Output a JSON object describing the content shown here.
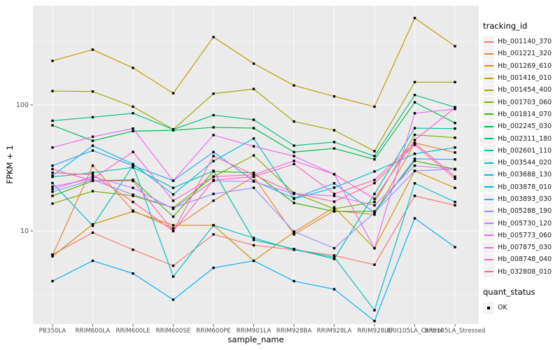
{
  "figure": {
    "background": "#FFFFFF",
    "panel_background": "#EBEBEB",
    "gridline_color": "#FFFFFF",
    "tick_label_color": "#4D4D4D",
    "tick_mark_color": "#333333",
    "point_color": "#000000"
  },
  "legend": {
    "tracking_title": "tracking_id",
    "quant_title": "quant_status",
    "quant_items": [
      {
        "label": "OK"
      }
    ],
    "key_background": "#F2F2F2"
  },
  "chart_data": {
    "type": "line",
    "title": "",
    "xlabel": "sample_name",
    "ylabel": "FPKM + 1",
    "y_scale": "log10",
    "y_major_ticks": [
      10,
      100
    ],
    "y_minor_ticks": [
      3.162,
      31.62,
      316.2
    ],
    "ylim": [
      1.85,
      620
    ],
    "grid": true,
    "legend_position": "right",
    "point_shape": "square",
    "categories": [
      "PB350LA",
      "RRIM600LA",
      "RRIM600LE",
      "RRIM600SE",
      "RRIM600PE",
      "RRIM901LA",
      "RRIM928BA",
      "RRIM928LA",
      "RRIM928LE",
      "RRII105LA_Control",
      "RRII105LA_Stressed"
    ],
    "series": [
      {
        "name": "Hb_001140_370",
        "color": "#F8766D",
        "values": [
          6.5,
          9.7,
          7.1,
          5.3,
          9.4,
          7.7,
          7.1,
          6.4,
          5.4,
          19,
          16
        ]
      },
      {
        "name": "Hb_001221_320",
        "color": "#EA8331",
        "values": [
          6.4,
          33,
          14.5,
          10.5,
          17.4,
          27,
          9.4,
          14.5,
          13.5,
          50,
          42
        ]
      },
      {
        "name": "Hb_001269_610",
        "color": "#D89000",
        "values": [
          6.3,
          11.3,
          14.3,
          11.1,
          11.1,
          5.8,
          9.8,
          15.4,
          7.3,
          30,
          22
        ]
      },
      {
        "name": "Hb_001416_010",
        "color": "#C09B00",
        "values": [
          224,
          275,
          197,
          124,
          346,
          213,
          143,
          117,
          97,
          490,
          293
        ]
      },
      {
        "name": "Hb_001454_400",
        "color": "#A3A500",
        "values": [
          129,
          128,
          97,
          64,
          123,
          134,
          74,
          63,
          43,
          152,
          152
        ]
      },
      {
        "name": "Hb_001703_060",
        "color": "#7CAE00",
        "values": [
          16.5,
          20.7,
          19,
          15.3,
          27,
          39.8,
          20,
          15,
          17,
          58,
          55
        ]
      },
      {
        "name": "Hb_001814_070",
        "color": "#39B600",
        "values": [
          19,
          25,
          25.5,
          13,
          29.7,
          29,
          16.7,
          14.3,
          14.3,
          36,
          31
        ]
      },
      {
        "name": "Hb_002245_030",
        "color": "#00BB4E",
        "values": [
          69,
          52,
          62,
          63,
          66.5,
          65.5,
          42.3,
          45.2,
          37,
          105,
          72
        ]
      },
      {
        "name": "Hb_002311_180",
        "color": "#00BF7D",
        "values": [
          75,
          80,
          86,
          64,
          83,
          76.4,
          47.6,
          50.8,
          39.3,
          120,
          96
        ]
      },
      {
        "name": "Hb_002601_110",
        "color": "#00C1A3",
        "values": [
          26.9,
          29,
          32,
          22,
          30,
          8.5,
          7.2,
          6.0,
          19.7,
          65.5,
          65
        ]
      },
      {
        "name": "Hb_003544_020",
        "color": "#00BFC4",
        "values": [
          24,
          11,
          33,
          4.35,
          11.1,
          8.8,
          7.1,
          6.2,
          2.35,
          23.9,
          17
        ]
      },
      {
        "name": "Hb_003688_130",
        "color": "#00BAE0",
        "values": [
          27.5,
          47.5,
          34,
          19.5,
          35.9,
          54.2,
          18,
          22.1,
          29.7,
          41,
          46
        ]
      },
      {
        "name": "Hb_003878_010",
        "color": "#00B0F6",
        "values": [
          4.0,
          5.8,
          4.6,
          2.85,
          5.1,
          5.8,
          4.0,
          3.45,
          1.93,
          12.6,
          7.45
        ]
      },
      {
        "name": "Hb_003893_030",
        "color": "#35A2FF",
        "values": [
          33,
          43.5,
          33,
          25.1,
          42.3,
          25,
          18.2,
          23.9,
          14,
          37.4,
          37
        ]
      },
      {
        "name": "Hb_005288_190",
        "color": "#9590FF",
        "values": [
          20.5,
          25.5,
          19.4,
          15.3,
          19.7,
          22,
          9.9,
          7.3,
          14,
          30,
          31
        ]
      },
      {
        "name": "Hb_005730_120",
        "color": "#C77CFF",
        "values": [
          21.5,
          27,
          22,
          15,
          25,
          24.7,
          19.7,
          19,
          16,
          33,
          30.8
        ]
      },
      {
        "name": "Hb_005773_060",
        "color": "#E76BF3",
        "values": [
          46,
          56,
          65,
          25.1,
          57.7,
          47,
          39.3,
          28.2,
          7.3,
          86,
          93
        ]
      },
      {
        "name": "Hb_007875_030",
        "color": "#FA62DB",
        "values": [
          22.5,
          26,
          42.4,
          17.4,
          27,
          28,
          36,
          28.2,
          18,
          52.7,
          95
        ]
      },
      {
        "name": "Hb_008748_040",
        "color": "#FF62BC",
        "values": [
          31,
          25,
          25,
          10,
          25.4,
          27,
          34,
          19.7,
          25.4,
          50,
          27
        ]
      },
      {
        "name": "Hb_032808_010",
        "color": "#FF6A98",
        "values": [
          29,
          28,
          17,
          10,
          39.3,
          28,
          20,
          17.1,
          24,
          48.3,
          26
        ]
      }
    ],
    "quant_status": {
      "label": "OK"
    }
  }
}
